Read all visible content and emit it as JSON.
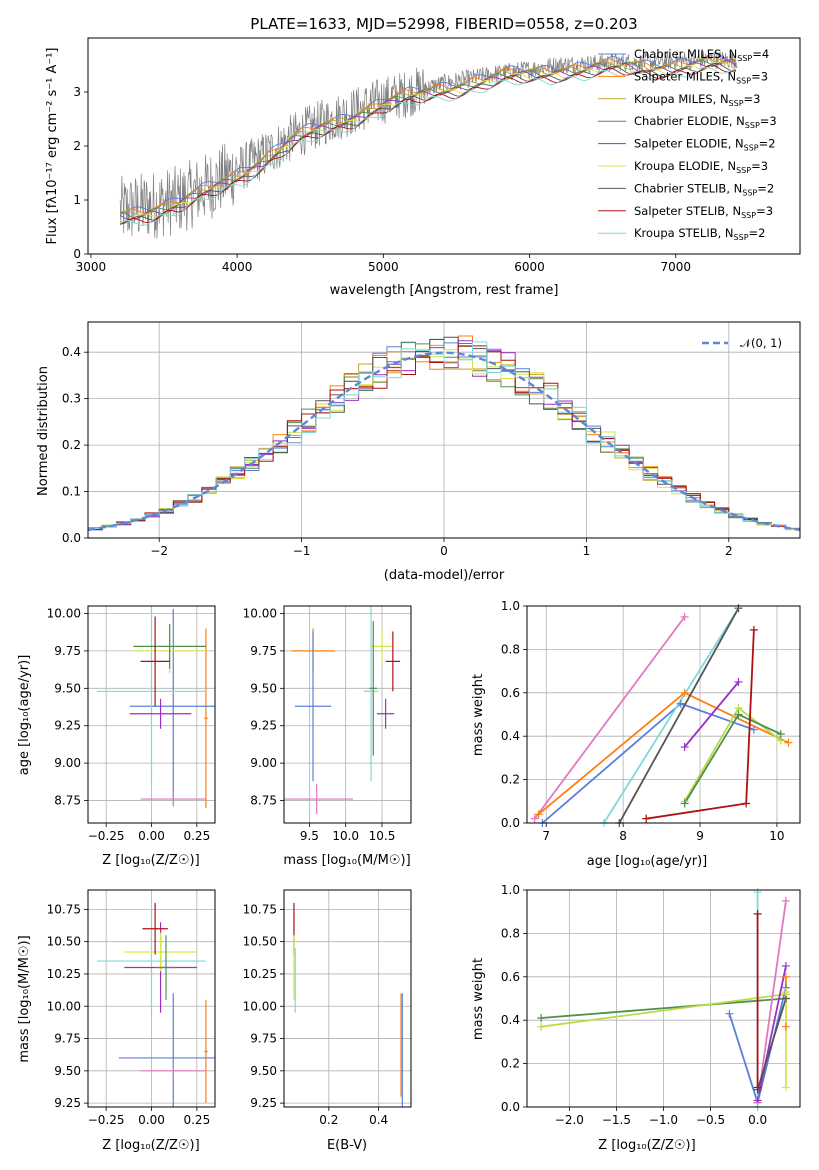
{
  "colors": {
    "chab_miles": "#5b7fd9",
    "salp_miles": "#ff7f0e",
    "krou_miles": "#c9a227",
    "chab_elodie": "#4f8f4f",
    "salp_elodie": "#9b30c8",
    "krou_elodie": "#d6e64a",
    "chab_stelib": "#555555",
    "salp_stelib": "#b01010",
    "krou_stelib": "#7fd9d9",
    "raw_spectrum": "#808080",
    "pink": "#e377c2",
    "lime": "#bcd94a",
    "teal": "#7fd9d9"
  },
  "chart_data": [
    {
      "id": "spectrum",
      "type": "line",
      "title": "PLATE=1633, MJD=52998, FIBERID=0558, z=0.203",
      "xlabel": "wavelength [Angstrom, rest frame]",
      "ylabel": "Flux [fλ10⁻¹⁷ erg cm⁻² s⁻¹ A⁻¹]",
      "xlim": [
        2980,
        7850
      ],
      "ylim": [
        0,
        4
      ],
      "xticks": [
        3000,
        4000,
        5000,
        6000,
        7000
      ],
      "yticks": [
        0,
        1,
        2,
        3
      ],
      "grid": false,
      "legend_position": "right",
      "legend": [
        {
          "name": "Chabrier MILES",
          "nssp": "4",
          "color": "chab_miles"
        },
        {
          "name": "Salpeter MILES",
          "nssp": "3",
          "color": "salp_miles"
        },
        {
          "name": "Kroupa MILES",
          "nssp": "3",
          "color": "krou_miles"
        },
        {
          "name": "Chabrier ELODIE",
          "nssp": "3",
          "color": "chab_elodie"
        },
        {
          "name": "Salpeter ELODIE",
          "nssp": "2",
          "color": "salp_elodie"
        },
        {
          "name": "Kroupa ELODIE",
          "nssp": "3",
          "color": "krou_elodie"
        },
        {
          "name": "Chabrier STELIB",
          "nssp": "2",
          "color": "chab_stelib"
        },
        {
          "name": "Salpeter STELIB",
          "nssp": "3",
          "color": "salp_stelib"
        },
        {
          "name": "Kroupa STELIB",
          "nssp": "2",
          "color": "krou_stelib"
        }
      ],
      "continuum": {
        "x": [
          3200,
          3400,
          3600,
          3800,
          4000,
          4200,
          4400,
          4600,
          4800,
          5000,
          5200,
          5400,
          5600,
          5800,
          6000,
          6200,
          6400,
          6600,
          6800,
          7000,
          7200,
          7400
        ],
        "y": [
          0.8,
          0.9,
          1.0,
          1.25,
          1.55,
          1.85,
          2.2,
          2.45,
          2.65,
          2.85,
          3.0,
          3.15,
          3.25,
          3.35,
          3.42,
          3.5,
          3.52,
          3.55,
          3.55,
          3.58,
          3.6,
          3.6
        ]
      }
    },
    {
      "id": "residuals",
      "type": "line",
      "xlabel": "(data-model)/error",
      "ylabel": "Normed distribution",
      "xlim": [
        -2.5,
        2.5
      ],
      "ylim": [
        0,
        0.465
      ],
      "xticks": [
        -2,
        -1,
        0,
        1,
        2
      ],
      "yticks": [
        0.0,
        0.1,
        0.2,
        0.3,
        0.4
      ],
      "xtick_labels": [
        "−2",
        "−1",
        "0",
        "1",
        "2"
      ],
      "ytick_labels": [
        "0.0",
        "0.1",
        "0.2",
        "0.3",
        "0.4"
      ],
      "grid": true,
      "legend_position": "top-right",
      "legend_label": "𝒩(0, 1)",
      "histogram_bin_width": 0.1
    },
    {
      "id": "age_vs_Z",
      "type": "scatter",
      "xlabel": "Z [log₁₀(Z/Z☉)]",
      "ylabel": "age  [log₁₀(age/yr)]",
      "xlim": [
        -0.35,
        0.35
      ],
      "ylim": [
        8.6,
        10.05
      ],
      "xticks": [
        -0.25,
        0.0,
        0.25
      ],
      "xtick_labels": [
        "−0.25",
        "0.00",
        "0.25"
      ],
      "yticks": [
        8.75,
        9.0,
        9.25,
        9.5,
        9.75,
        10.0
      ],
      "ytick_labels": [
        "8.75",
        "9.00",
        "9.25",
        "9.50",
        "9.75",
        "10.00"
      ],
      "grid": true,
      "points": [
        {
          "x": 0.3,
          "y": 9.3,
          "xerr": 0.01,
          "yerr": 0.6,
          "color": "salp_miles"
        },
        {
          "x": 0.12,
          "y": 9.38,
          "xerr": 0.24,
          "yerr": 0.65,
          "color": "chab_miles"
        },
        {
          "x": 0.0,
          "y": 9.48,
          "xerr": 0.3,
          "yerr": 0.6,
          "color": "krou_stelib"
        },
        {
          "x": 0.05,
          "y": 9.33,
          "xerr": 0.17,
          "yerr": 0.1,
          "color": "salp_elodie"
        },
        {
          "x": 0.1,
          "y": 9.75,
          "xerr": 0.2,
          "yerr": 0.15,
          "color": "krou_elodie"
        },
        {
          "x": 0.1,
          "y": 9.78,
          "xerr": 0.2,
          "yerr": 0.15,
          "color": "chab_elodie"
        },
        {
          "x": 0.02,
          "y": 9.68,
          "xerr": 0.08,
          "yerr": 0.3,
          "color": "salp_stelib"
        },
        {
          "x": 0.12,
          "y": 8.76,
          "xerr": 0.18,
          "yerr": 0.05,
          "color": "pink"
        }
      ]
    },
    {
      "id": "age_vs_mass",
      "type": "scatter",
      "xlabel": "mass [log₁₀(M/M☉)]",
      "ylabel": "",
      "xlim": [
        9.15,
        10.9
      ],
      "ylim": [
        8.6,
        10.05
      ],
      "xticks": [
        9.5,
        10.0,
        10.5
      ],
      "xtick_labels": [
        "9.5",
        "10.0",
        "10.5"
      ],
      "yticks": [
        8.75,
        9.0,
        9.25,
        9.5,
        9.75,
        10.0
      ],
      "ytick_labels": [
        "8.75",
        "9.00",
        "9.25",
        "9.50",
        "9.75",
        "10.00"
      ],
      "grid": true,
      "points": [
        {
          "x": 9.55,
          "y": 9.75,
          "xerr": 0.3,
          "yerr": 0.15,
          "color": "salp_miles"
        },
        {
          "x": 9.55,
          "y": 9.38,
          "xerr": 0.25,
          "yerr": 0.5,
          "color": "chab_miles"
        },
        {
          "x": 9.6,
          "y": 8.76,
          "xerr": 0.5,
          "yerr": 0.1,
          "color": "pink"
        },
        {
          "x": 10.35,
          "y": 9.48,
          "xerr": 0.1,
          "yerr": 0.6,
          "color": "krou_stelib"
        },
        {
          "x": 10.55,
          "y": 9.33,
          "xerr": 0.12,
          "yerr": 0.1,
          "color": "salp_elodie"
        },
        {
          "x": 10.5,
          "y": 9.78,
          "xerr": 0.14,
          "yerr": 0.12,
          "color": "krou_elodie"
        },
        {
          "x": 10.65,
          "y": 9.68,
          "xerr": 0.1,
          "yerr": 0.2,
          "color": "salp_stelib"
        },
        {
          "x": 10.38,
          "y": 9.5,
          "xerr": 0.05,
          "yerr": 0.45,
          "color": "chab_elodie"
        }
      ]
    },
    {
      "id": "weight_vs_age",
      "type": "line",
      "xlabel": "age  [log₁₀(age/yr)]",
      "ylabel": "mass weight",
      "xlim": [
        6.75,
        10.3
      ],
      "ylim": [
        0,
        1.0
      ],
      "xticks": [
        7,
        8,
        9,
        10
      ],
      "xtick_labels": [
        "7",
        "8",
        "9",
        "10"
      ],
      "yticks": [
        0.0,
        0.2,
        0.4,
        0.6,
        0.8,
        1.0
      ],
      "ytick_labels": [
        "0.0",
        "0.2",
        "0.4",
        "0.6",
        "0.8",
        "1.0"
      ],
      "grid": true,
      "series": [
        {
          "color": "pink",
          "x": [
            6.85,
            8.8
          ],
          "y": [
            0.02,
            0.95
          ]
        },
        {
          "color": "salp_miles",
          "x": [
            6.9,
            8.8,
            10.15
          ],
          "y": [
            0.04,
            0.6,
            0.37
          ]
        },
        {
          "color": "chab_miles",
          "x": [
            6.95,
            8.75,
            9.7
          ],
          "y": [
            0.0,
            0.55,
            0.43
          ]
        },
        {
          "color": "teal",
          "x": [
            7.75,
            9.5
          ],
          "y": [
            0.0,
            0.99
          ]
        },
        {
          "color": "chab_stelib",
          "x": [
            7.95,
            9.5
          ],
          "y": [
            0.0,
            0.99
          ]
        },
        {
          "color": "salp_elodie",
          "x": [
            8.8,
            9.5
          ],
          "y": [
            0.35,
            0.65
          ]
        },
        {
          "color": "lime",
          "x": [
            8.8,
            9.5,
            10.05
          ],
          "y": [
            0.1,
            0.53,
            0.38
          ]
        },
        {
          "color": "chab_elodie",
          "x": [
            8.8,
            9.5,
            10.05
          ],
          "y": [
            0.09,
            0.5,
            0.41
          ]
        },
        {
          "color": "salp_stelib",
          "x": [
            8.3,
            9.6,
            9.7
          ],
          "y": [
            0.02,
            0.09,
            0.89
          ]
        }
      ]
    },
    {
      "id": "mass_vs_Z",
      "type": "scatter",
      "xlabel": "Z [log₁₀(Z/Z☉)]",
      "ylabel": "mass [log₁₀(M/M☉)]",
      "xlim": [
        -0.35,
        0.35
      ],
      "ylim": [
        9.22,
        10.9
      ],
      "xticks": [
        -0.25,
        0.0,
        0.25
      ],
      "xtick_labels": [
        "−0.25",
        "0.00",
        "0.25"
      ],
      "yticks": [
        9.25,
        9.5,
        9.75,
        10.0,
        10.25,
        10.5,
        10.75
      ],
      "ytick_labels": [
        "9.25",
        "9.50",
        "9.75",
        "10.00",
        "10.25",
        "10.50",
        "10.75"
      ],
      "grid": true,
      "points": [
        {
          "x": 0.3,
          "y": 9.65,
          "xerr": 0.01,
          "yerr": 0.4,
          "color": "salp_miles"
        },
        {
          "x": 0.12,
          "y": 9.6,
          "xerr": 0.3,
          "yerr": 0.5,
          "color": "chab_miles"
        },
        {
          "x": 0.12,
          "y": 9.5,
          "xerr": 0.18,
          "yerr": 0.05,
          "color": "pink"
        },
        {
          "x": 0.0,
          "y": 10.35,
          "xerr": 0.3,
          "yerr": 0.4,
          "color": "krou_stelib"
        },
        {
          "x": 0.05,
          "y": 10.3,
          "xerr": 0.2,
          "yerr": 0.35,
          "color": "salp_elodie"
        },
        {
          "x": 0.05,
          "y": 10.42,
          "xerr": 0.2,
          "yerr": 0.15,
          "color": "krou_elodie"
        },
        {
          "x": 0.02,
          "y": 10.6,
          "xerr": 0.07,
          "yerr": 0.2,
          "color": "salp_stelib"
        },
        {
          "x": 0.08,
          "y": 10.3,
          "xerr": 0.05,
          "yerr": 0.25,
          "color": "chab_elodie"
        }
      ]
    },
    {
      "id": "mass_vs_ebv",
      "type": "scatter",
      "xlabel": "E(B-V)",
      "ylabel": "",
      "xlim": [
        0.02,
        0.53
      ],
      "ylim": [
        9.22,
        10.9
      ],
      "xticks": [
        0.2,
        0.4
      ],
      "xtick_labels": [
        "0.2",
        "0.4"
      ],
      "yticks": [
        9.25,
        9.5,
        9.75,
        10.0,
        10.25,
        10.5,
        10.75
      ],
      "ytick_labels": [
        "9.25",
        "9.50",
        "9.75",
        "10.00",
        "10.25",
        "10.50",
        "10.75"
      ],
      "grid": true,
      "points": [
        {
          "x": 0.06,
          "y": 10.6,
          "xerr": 0.0,
          "yerr": 0.2,
          "color": "salp_stelib"
        },
        {
          "x": 0.06,
          "y": 10.3,
          "xerr": 0.0,
          "yerr": 0.25,
          "color": "krou_elodie"
        },
        {
          "x": 0.065,
          "y": 10.2,
          "xerr": 0.0,
          "yerr": 0.25,
          "color": "krou_stelib"
        },
        {
          "x": 0.49,
          "y": 9.7,
          "xerr": 0.0,
          "yerr": 0.4,
          "color": "salp_miles"
        },
        {
          "x": 0.495,
          "y": 9.65,
          "xerr": 0.0,
          "yerr": 0.45,
          "color": "chab_miles"
        }
      ]
    },
    {
      "id": "weight_vs_Z",
      "type": "line",
      "xlabel": "Z [log₁₀(Z/Z☉)]",
      "ylabel": "mass weight",
      "xlim": [
        -2.45,
        0.45
      ],
      "ylim": [
        0,
        1.0
      ],
      "xticks": [
        -2.0,
        -1.5,
        -1.0,
        -0.5,
        0.0
      ],
      "xtick_labels": [
        "−2.0",
        "−1.5",
        "−1.0",
        "−0.5",
        "0.0"
      ],
      "yticks": [
        0.0,
        0.2,
        0.4,
        0.6,
        0.8,
        1.0
      ],
      "ytick_labels": [
        "0.0",
        "0.2",
        "0.4",
        "0.6",
        "0.8",
        "1.0"
      ],
      "grid": true,
      "series": [
        {
          "color": "chab_elodie",
          "x": [
            -2.3,
            0.3
          ],
          "y": [
            0.41,
            0.5
          ]
        },
        {
          "color": "lime",
          "x": [
            -2.3,
            0.3
          ],
          "y": [
            0.37,
            0.52
          ]
        },
        {
          "color": "chab_miles",
          "x": [
            -0.3,
            0.0,
            0.3
          ],
          "y": [
            0.43,
            0.02,
            0.55
          ]
        },
        {
          "color": "pink",
          "x": [
            0.0,
            0.3
          ],
          "y": [
            0.02,
            0.95
          ]
        },
        {
          "color": "salp_elodie",
          "x": [
            0.0,
            0.3
          ],
          "y": [
            0.03,
            0.65
          ]
        },
        {
          "color": "teal",
          "x": [
            0.0,
            0.0
          ],
          "y": [
            0.0,
            0.99
          ]
        },
        {
          "color": "salp_miles",
          "x": [
            0.3,
            0.3
          ],
          "y": [
            0.37,
            0.6
          ]
        },
        {
          "color": "chab_stelib",
          "x": [
            0.0,
            0.3
          ],
          "y": [
            0.08,
            0.5
          ]
        },
        {
          "color": "salp_stelib",
          "x": [
            0.0,
            0.0
          ],
          "y": [
            0.09,
            0.89
          ]
        },
        {
          "color": "krou_elodie",
          "x": [
            0.3,
            0.3
          ],
          "y": [
            0.09,
            0.53
          ]
        }
      ]
    }
  ]
}
